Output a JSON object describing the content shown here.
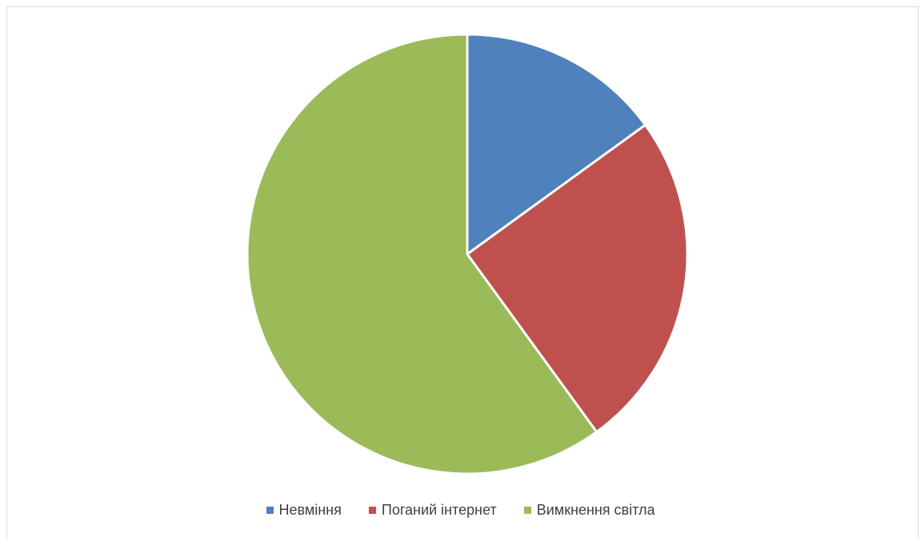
{
  "chart_data": {
    "type": "pie",
    "title": "",
    "categories": [
      "Невміння",
      "Поганий інтернет",
      "Вимкнення світла"
    ],
    "values": [
      15,
      25,
      60
    ],
    "colors": [
      "#4f81bd",
      "#c0504d",
      "#9bbb59"
    ],
    "start_angle_deg": 0,
    "direction": "clockwise",
    "legend_position": "bottom"
  }
}
